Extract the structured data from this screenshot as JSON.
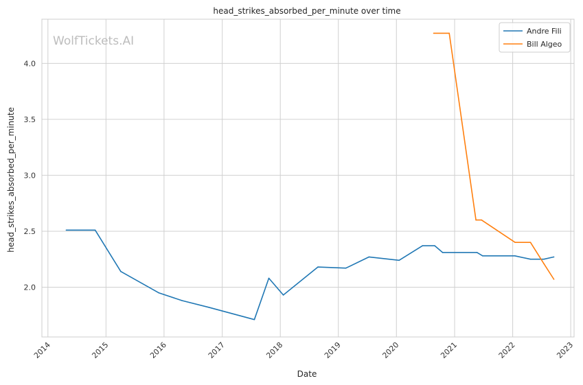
{
  "chart_data": {
    "type": "line",
    "title": "head_strikes_absorbed_per_minute over time",
    "xlabel": "Date",
    "ylabel": "head_strikes_absorbed_per_minute",
    "watermark": "WolfTickets.AI",
    "x_axis_type": "date",
    "xlim": [
      "2013-11-24",
      "2023-01-22"
    ],
    "ylim": [
      1.555,
      4.395
    ],
    "x_ticks": [
      "2014",
      "2015",
      "2016",
      "2017",
      "2018",
      "2019",
      "2020",
      "2021",
      "2022",
      "2023"
    ],
    "y_ticks": [
      "2.0",
      "2.5",
      "3.0",
      "3.5",
      "4.0"
    ],
    "grid": true,
    "legend_position": "top-right",
    "series": [
      {
        "name": "Andre Fili",
        "color": "#1f77b4",
        "points": [
          [
            "2014-04-26",
            2.51
          ],
          [
            "2014-10-25",
            2.51
          ],
          [
            "2015-04-04",
            2.14
          ],
          [
            "2015-11-28",
            1.95
          ],
          [
            "2016-04-23",
            1.88
          ],
          [
            "2016-10-08",
            1.82
          ],
          [
            "2017-07-22",
            1.71
          ],
          [
            "2017-10-21",
            2.08
          ],
          [
            "2018-01-20",
            1.93
          ],
          [
            "2018-08-25",
            2.18
          ],
          [
            "2019-02-17",
            2.17
          ],
          [
            "2019-07-13",
            2.27
          ],
          [
            "2020-01-18",
            2.24
          ],
          [
            "2020-06-13",
            2.37
          ],
          [
            "2020-08-29",
            2.37
          ],
          [
            "2020-10-17",
            2.31
          ],
          [
            "2021-05-22",
            2.31
          ],
          [
            "2021-06-26",
            2.28
          ],
          [
            "2022-01-15",
            2.28
          ],
          [
            "2022-04-23",
            2.25
          ],
          [
            "2022-07-16",
            2.25
          ],
          [
            "2022-09-17",
            2.27
          ]
        ]
      },
      {
        "name": "Bill Algeo",
        "color": "#ff7f0e",
        "points": [
          [
            "2020-08-22",
            4.27
          ],
          [
            "2020-11-28",
            4.27
          ],
          [
            "2021-05-15",
            2.6
          ],
          [
            "2021-06-19",
            2.6
          ],
          [
            "2022-01-16",
            2.4
          ],
          [
            "2022-04-23",
            2.4
          ],
          [
            "2022-07-16",
            2.21
          ],
          [
            "2022-09-17",
            2.07
          ]
        ]
      }
    ]
  }
}
